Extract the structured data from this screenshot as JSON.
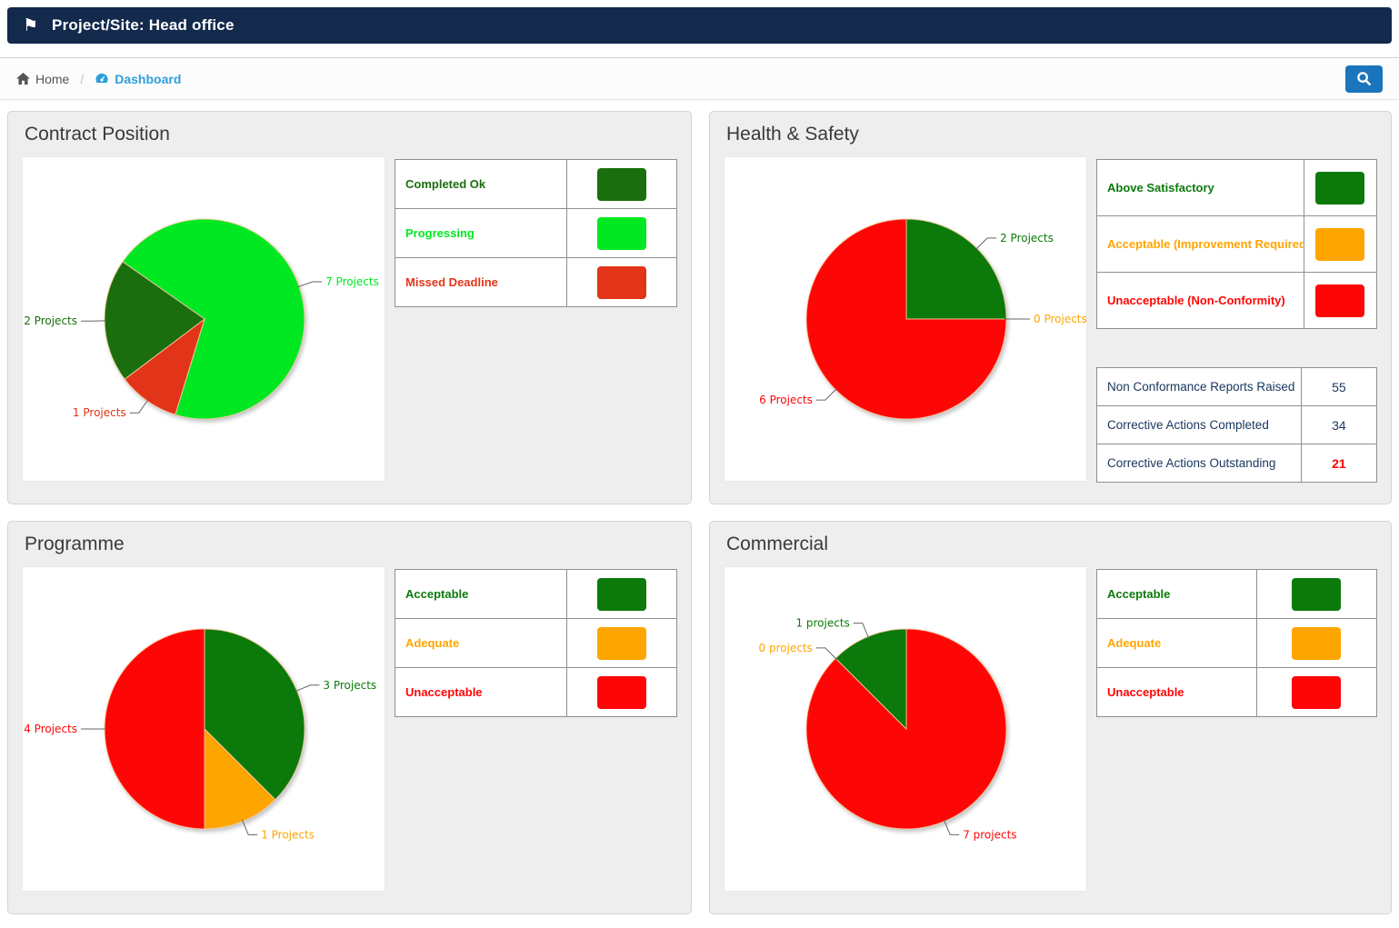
{
  "header": {
    "title": "Project/Site: Head office",
    "flag_glyph": "⚑"
  },
  "breadcrumb": {
    "home_label": "Home",
    "separator": "/",
    "current_label": "Dashboard"
  },
  "colors": {
    "header_bg": "#132a4d",
    "breadcrumb_link": "#2d9fd8",
    "search_button": "#1b75bc",
    "stats_text": "#17365d",
    "stats_alert": "#ff0000",
    "bright_green": "#00e822",
    "dark_green": "#1a6e0d",
    "forest_green": "#0b7a0b",
    "orange": "#ffa500",
    "red": "#ff0606",
    "contract_red": "#e23419"
  },
  "panels": [
    {
      "title": "Contract Position",
      "chart_index": 0,
      "legend": [
        {
          "label": "Completed Ok",
          "color": "#1a6e0d"
        },
        {
          "label": "Progressing",
          "color": "#00e822"
        },
        {
          "label": "Missed Deadline",
          "color": "#e23419"
        }
      ]
    },
    {
      "title": "Health & Safety",
      "chart_index": 1,
      "legend": [
        {
          "label": "Above Satisfactory",
          "color": "#0b7a0b"
        },
        {
          "label": "Acceptable (Improvement Required)",
          "color": "#ffa500"
        },
        {
          "label": "Unacceptable (Non-Conformity)",
          "color": "#ff0606"
        }
      ],
      "stats": [
        {
          "label": "Non Conformance Reports Raised",
          "value": "55",
          "highlight": false
        },
        {
          "label": "Corrective Actions Completed",
          "value": "34",
          "highlight": false
        },
        {
          "label": "Corrective Actions Outstanding",
          "value": "21",
          "highlight": true
        }
      ]
    },
    {
      "title": "Programme",
      "chart_index": 2,
      "legend": [
        {
          "label": "Acceptable",
          "color": "#0b7a0b"
        },
        {
          "label": "Adequate",
          "color": "#ffa500"
        },
        {
          "label": "Unacceptable",
          "color": "#ff0606"
        }
      ]
    },
    {
      "title": "Commercial",
      "chart_index": 3,
      "legend": [
        {
          "label": "Acceptable",
          "color": "#0b7a0b"
        },
        {
          "label": "Adequate",
          "color": "#ffa500"
        },
        {
          "label": "Unacceptable",
          "color": "#ff0606"
        }
      ]
    }
  ],
  "chart_data": [
    {
      "type": "pie",
      "title": "Contract Position",
      "start_angle": 305,
      "total": 10,
      "slices": [
        {
          "category": "Progressing",
          "label": "7 Projects",
          "value": 7,
          "color": "#00e822"
        },
        {
          "category": "Missed Deadline",
          "label": "1 Projects",
          "value": 1,
          "color": "#e23419"
        },
        {
          "category": "Completed Ok",
          "label": "2 Projects",
          "value": 2,
          "color": "#1a6e0d"
        }
      ]
    },
    {
      "type": "pie",
      "title": "Health & Safety",
      "start_angle": 0,
      "total": 8,
      "slices": [
        {
          "category": "Above Satisfactory",
          "label": "2 Projects",
          "value": 2,
          "color": "#0b7a0b"
        },
        {
          "category": "Acceptable (Improvement Required)",
          "label": "0 Projects",
          "value": 0,
          "color": "#ffa500"
        },
        {
          "category": "Unacceptable (Non-Conformity)",
          "label": "6 Projects",
          "value": 6,
          "color": "#ff0606"
        }
      ]
    },
    {
      "type": "pie",
      "title": "Programme",
      "start_angle": 0,
      "total": 8,
      "slices": [
        {
          "category": "Acceptable",
          "label": "3 Projects",
          "value": 3,
          "color": "#0b7a0b"
        },
        {
          "category": "Adequate",
          "label": "1 Projects",
          "value": 1,
          "color": "#ffa500"
        },
        {
          "category": "Unacceptable",
          "label": "4 Projects",
          "value": 4,
          "color": "#ff0606"
        }
      ]
    },
    {
      "type": "pie",
      "title": "Commercial",
      "start_angle": 0,
      "total": 8,
      "slices": [
        {
          "category": "Unacceptable",
          "label": "7 projects",
          "value": 7,
          "color": "#ff0606"
        },
        {
          "category": "Adequate",
          "label": "0 projects",
          "value": 0,
          "color": "#ffa500"
        },
        {
          "category": "Acceptable",
          "label": "1 projects",
          "value": 1,
          "color": "#0b7a0b"
        }
      ]
    }
  ]
}
